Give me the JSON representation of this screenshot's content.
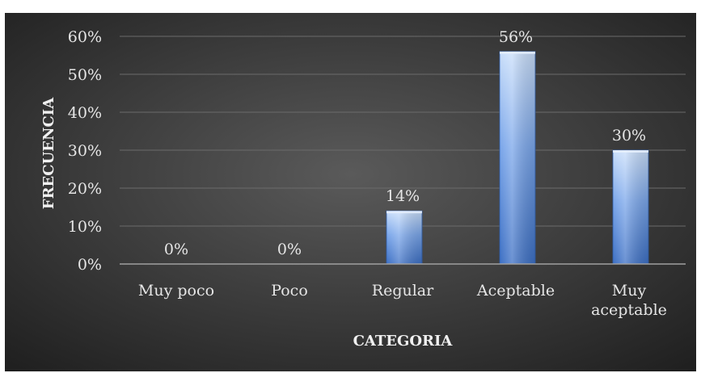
{
  "chart_data": {
    "type": "bar",
    "title": "",
    "xlabel": "CATEGORIA",
    "ylabel": "FRECUENCIA",
    "categories": [
      "Muy poco",
      "Poco",
      "Regular",
      "Aceptable",
      "Muy aceptable"
    ],
    "values": [
      0,
      0,
      14,
      56,
      30
    ],
    "value_format": "percent",
    "ylim": [
      0,
      60
    ],
    "yticks": [
      0,
      10,
      20,
      30,
      40,
      50,
      60
    ],
    "ytick_labels": [
      "0%",
      "10%",
      "20%",
      "30%",
      "40%",
      "50%",
      "60%"
    ],
    "data_labels": [
      "0%",
      "0%",
      "14%",
      "56%",
      "30%"
    ],
    "grid": true,
    "legend": "none",
    "colors": {
      "background_center": "#5a5a5a",
      "background_edge": "#1e1e1e",
      "bar_light": "#c9defa",
      "bar_mid": "#7aa6ea",
      "bar_dark": "#3c6fc4",
      "gridline": "#6b6b6b",
      "axis_line": "#a0a0a0",
      "text": "#e6e6e6"
    }
  }
}
